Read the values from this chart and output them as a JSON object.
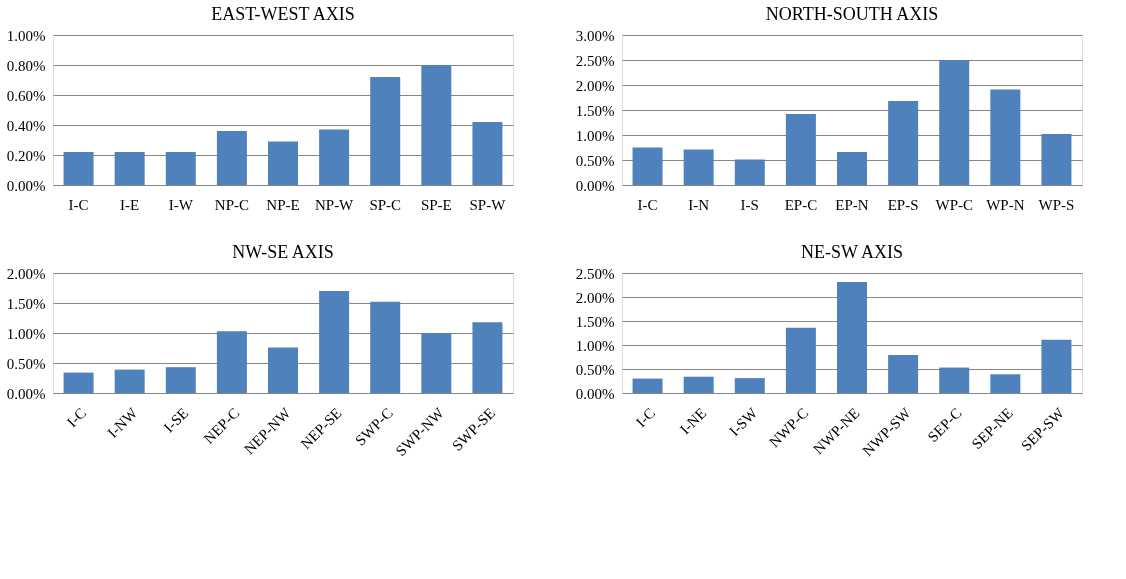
{
  "chart_data": [
    {
      "type": "bar",
      "title": "EAST-WEST AXIS",
      "categories": [
        "I-C",
        "I-E",
        "I-W",
        "NP-C",
        "NP-E",
        "NP-W",
        "SP-C",
        "SP-E",
        "SP-W"
      ],
      "values": [
        0.22,
        0.22,
        0.22,
        0.36,
        0.29,
        0.37,
        0.72,
        0.8,
        0.42
      ],
      "color": "#4f81bd",
      "ylim": [
        0,
        1
      ],
      "yticks": [
        {
          "value": 0,
          "label": "0.00%"
        },
        {
          "value": 0.2,
          "label": "0.20%"
        },
        {
          "value": 0.4,
          "label": "0.40%"
        },
        {
          "value": 0.6,
          "label": "0.60%"
        },
        {
          "value": 0.8,
          "label": "0.80%"
        },
        {
          "value": 1,
          "label": "1.00%"
        }
      ],
      "grid": "y"
    },
    {
      "type": "bar",
      "title": "NORTH-SOUTH AXIS",
      "categories": [
        "I-C",
        "I-N",
        "I-S",
        "EP-C",
        "EP-N",
        "EP-S",
        "WP-C",
        "WP-N",
        "WP-S"
      ],
      "values": [
        0.75,
        0.71,
        0.51,
        1.42,
        0.66,
        1.68,
        2.5,
        1.91,
        1.02
      ],
      "color": "#4f81bd",
      "ylim": [
        0,
        3
      ],
      "yticks": [
        {
          "value": 0,
          "label": "0.00%"
        },
        {
          "value": 0.5,
          "label": "0.50%"
        },
        {
          "value": 1,
          "label": "1.00%"
        },
        {
          "value": 1.5,
          "label": "1.50%"
        },
        {
          "value": 2,
          "label": "2.00%"
        },
        {
          "value": 2.5,
          "label": "2.50%"
        },
        {
          "value": 3,
          "label": "3.00%"
        }
      ],
      "grid": "y"
    },
    {
      "type": "bar",
      "title": "NW-SE AXIS",
      "categories": [
        "I-C",
        "I-NW",
        "I-SE",
        "NEP-C",
        "NEP-NW",
        "NEP-SE",
        "SWP-C",
        "SWP-NW",
        "SWP-SE"
      ],
      "values": [
        0.34,
        0.39,
        0.43,
        1.03,
        0.76,
        1.7,
        1.52,
        1.0,
        1.18
      ],
      "color": "#4f81bd",
      "ylim": [
        0,
        2
      ],
      "yticks": [
        {
          "value": 0,
          "label": "0.00%"
        },
        {
          "value": 0.5,
          "label": "0.50%"
        },
        {
          "value": 1,
          "label": "1.00%"
        },
        {
          "value": 1.5,
          "label": "1.50%"
        },
        {
          "value": 2,
          "label": "2.00%"
        }
      ],
      "grid": "y"
    },
    {
      "type": "bar",
      "title": "NE-SW AXIS",
      "categories": [
        "I-C",
        "I-NE",
        "I-SW",
        "NWP-C",
        "NWP-NE",
        "NWP-SW",
        "SEP-C",
        "SEP-NE",
        "SEP-SW"
      ],
      "values": [
        0.3,
        0.34,
        0.31,
        1.36,
        2.31,
        0.79,
        0.53,
        0.39,
        1.11
      ],
      "color": "#4f81bd",
      "ylim": [
        0,
        2.5
      ],
      "yticks": [
        {
          "value": 0,
          "label": "0.00%"
        },
        {
          "value": 0.5,
          "label": "0.50%"
        },
        {
          "value": 1,
          "label": "1.00%"
        },
        {
          "value": 1.5,
          "label": "1.50%"
        },
        {
          "value": 2,
          "label": "2.00%"
        },
        {
          "value": 2.5,
          "label": "2.50%"
        }
      ],
      "grid": "y"
    }
  ]
}
